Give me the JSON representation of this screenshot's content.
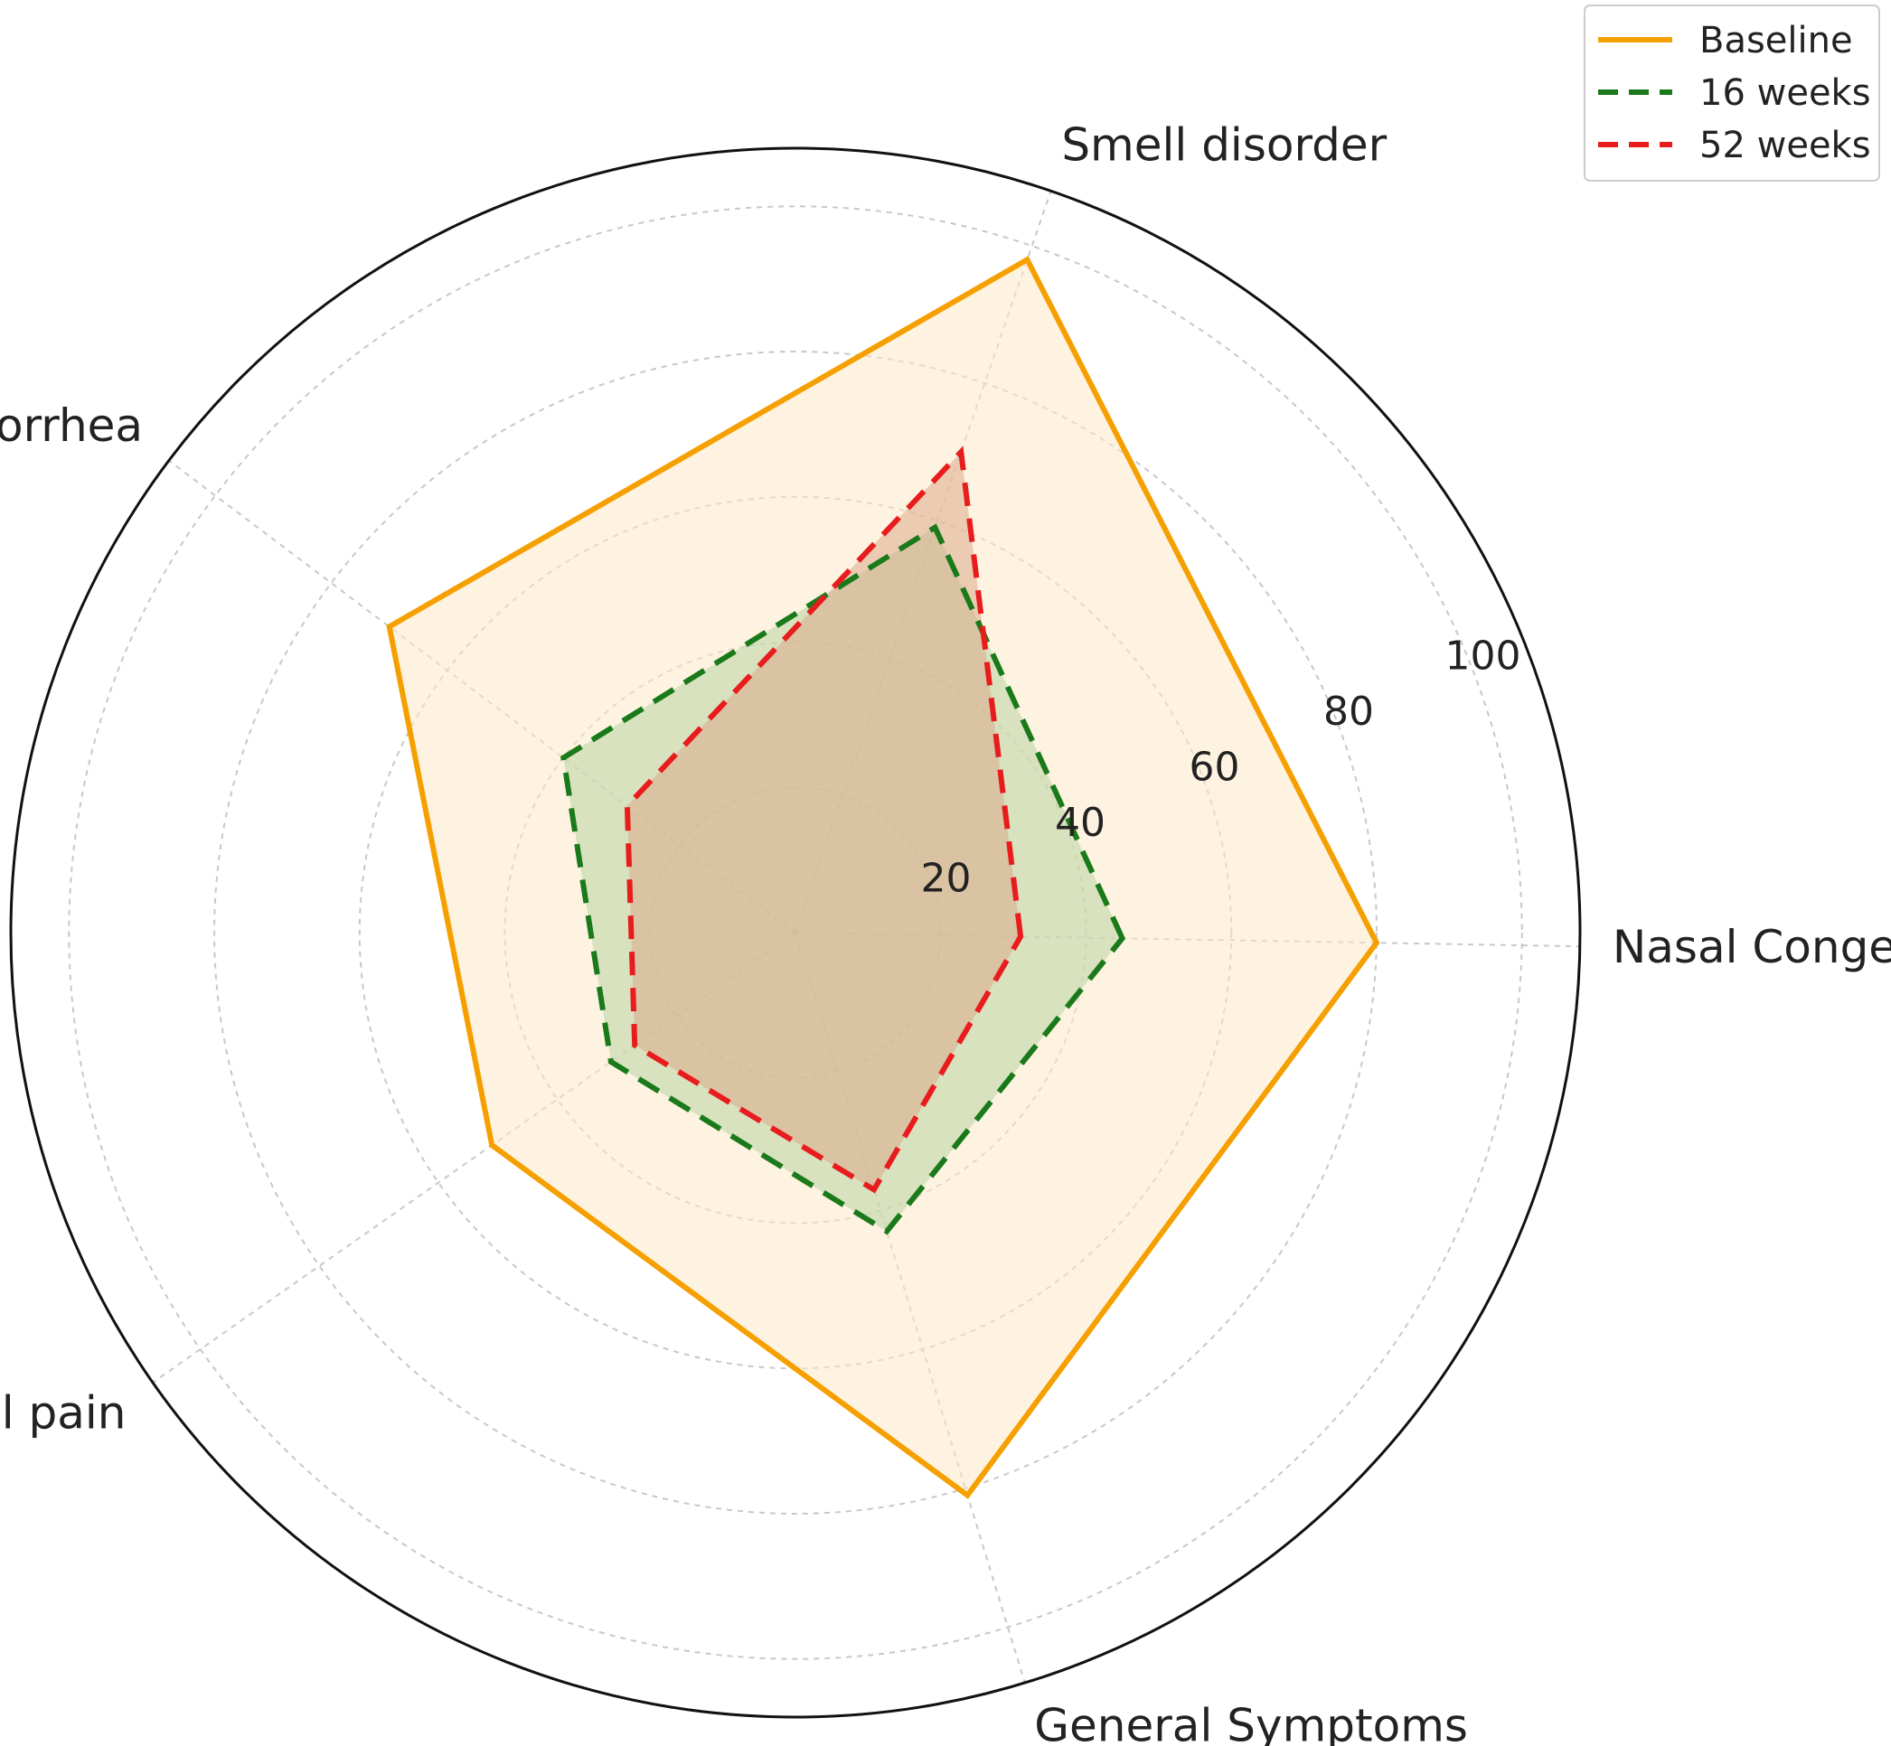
{
  "chart_data": {
    "type": "radar",
    "axes": [
      "Nasal Congestion",
      "Smell disorder",
      "Rhinorrhea",
      "Facial pain",
      "General Symptoms"
    ],
    "rlim": [
      0,
      108
    ],
    "r_ticks": [
      20,
      40,
      60,
      80,
      100
    ],
    "grid": true,
    "legend_position": "top-right",
    "series": [
      {
        "name": "Baseline",
        "values": [
          80,
          98,
          70,
          51,
          81
        ],
        "color": "#f5a000",
        "dash": "solid",
        "fill": "#fde9c8"
      },
      {
        "name": "16 weeks",
        "values": [
          45,
          59,
          40,
          31,
          43
        ],
        "color": "#1a7a1a",
        "dash": "dashed",
        "fill": "#b8d4a4"
      },
      {
        "name": "52 weeks",
        "values": [
          31,
          70,
          29,
          27,
          37
        ],
        "color": "#e81c1c",
        "dash": "dashed",
        "fill": "#dba98c"
      }
    ]
  }
}
